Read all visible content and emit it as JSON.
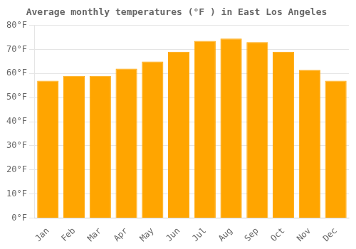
{
  "chart_data": {
    "type": "bar",
    "title": "Average monthly temperatures (°F ) in East Los Angeles",
    "categories": [
      "Jan",
      "Feb",
      "Mar",
      "Apr",
      "May",
      "Jun",
      "Jul",
      "Aug",
      "Sep",
      "Oct",
      "Nov",
      "Dec"
    ],
    "values": [
      57,
      59,
      59,
      62,
      65,
      69,
      73.5,
      74.5,
      73,
      69,
      61.5,
      57
    ],
    "color": "#FFA500",
    "ylim": [
      0,
      80
    ],
    "yticks": [
      {
        "value": 0,
        "label": "0°F"
      },
      {
        "value": 10,
        "label": "10°F"
      },
      {
        "value": 20,
        "label": "20°F"
      },
      {
        "value": 30,
        "label": "30°F"
      },
      {
        "value": 40,
        "label": "40°F"
      },
      {
        "value": 50,
        "label": "50°F"
      },
      {
        "value": 60,
        "label": "60°F"
      },
      {
        "value": 70,
        "label": "70°F"
      },
      {
        "value": 80,
        "label": "80°F"
      }
    ],
    "grid": true
  }
}
